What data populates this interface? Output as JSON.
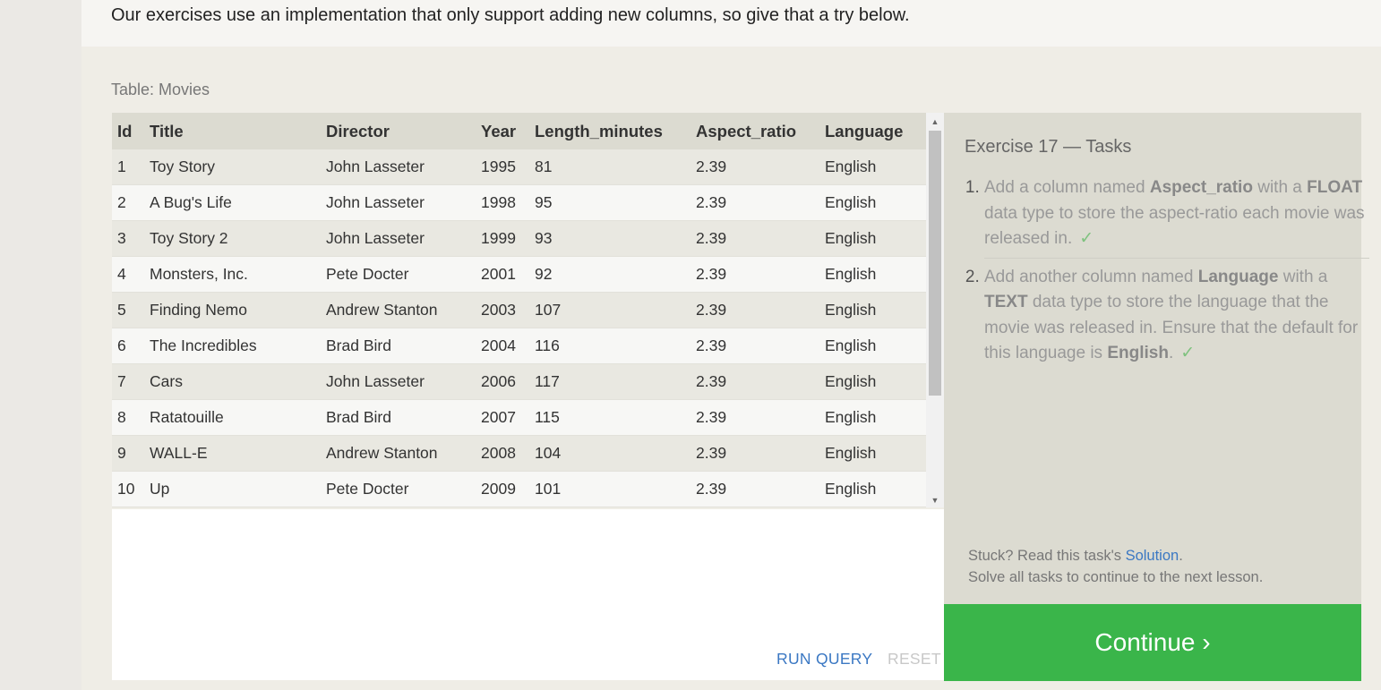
{
  "intro_text": "Our exercises use an implementation that only support adding new columns, so give that a try below.",
  "table_caption": "Table: Movies",
  "columns": [
    "Id",
    "Title",
    "Director",
    "Year",
    "Length_minutes",
    "Aspect_ratio",
    "Language"
  ],
  "rows": [
    [
      "1",
      "Toy Story",
      "John Lasseter",
      "1995",
      "81",
      "2.39",
      "English"
    ],
    [
      "2",
      "A Bug's Life",
      "John Lasseter",
      "1998",
      "95",
      "2.39",
      "English"
    ],
    [
      "3",
      "Toy Story 2",
      "John Lasseter",
      "1999",
      "93",
      "2.39",
      "English"
    ],
    [
      "4",
      "Monsters, Inc.",
      "Pete Docter",
      "2001",
      "92",
      "2.39",
      "English"
    ],
    [
      "5",
      "Finding Nemo",
      "Andrew Stanton",
      "2003",
      "107",
      "2.39",
      "English"
    ],
    [
      "6",
      "The Incredibles",
      "Brad Bird",
      "2004",
      "116",
      "2.39",
      "English"
    ],
    [
      "7",
      "Cars",
      "John Lasseter",
      "2006",
      "117",
      "2.39",
      "English"
    ],
    [
      "8",
      "Ratatouille",
      "Brad Bird",
      "2007",
      "115",
      "2.39",
      "English"
    ],
    [
      "9",
      "WALL-E",
      "Andrew Stanton",
      "2008",
      "104",
      "2.39",
      "English"
    ],
    [
      "10",
      "Up",
      "Pete Docter",
      "2009",
      "101",
      "2.39",
      "English"
    ]
  ],
  "editor": {
    "run_label": "RUN QUERY",
    "reset_label": "RESET"
  },
  "tasks": {
    "title": "Exercise 17 — Tasks",
    "task1": {
      "t1": "Add a column named ",
      "b1": "Aspect_ratio",
      "t2": " with a ",
      "b2": "FLOAT",
      "t3": " data type to store the aspect-ratio each movie was released in.",
      "check": "✓"
    },
    "task2": {
      "t1": "Add another column named ",
      "b1": "Language",
      "t2": " with a ",
      "b2": "TEXT",
      "t3": " data type to store the language that the movie was released in. Ensure that the default for this language is ",
      "b3": "English",
      "t4": ".",
      "check": "✓"
    },
    "stuck_prefix": "Stuck? Read this task's ",
    "solution_link": "Solution",
    "stuck_suffix": ".",
    "solve_all": "Solve all tasks to continue to the next lesson."
  },
  "continue_label": "Continue ›",
  "scrollbar_icons": [
    "scroll-up-arrow-icon",
    "scroll-down-arrow-icon"
  ]
}
